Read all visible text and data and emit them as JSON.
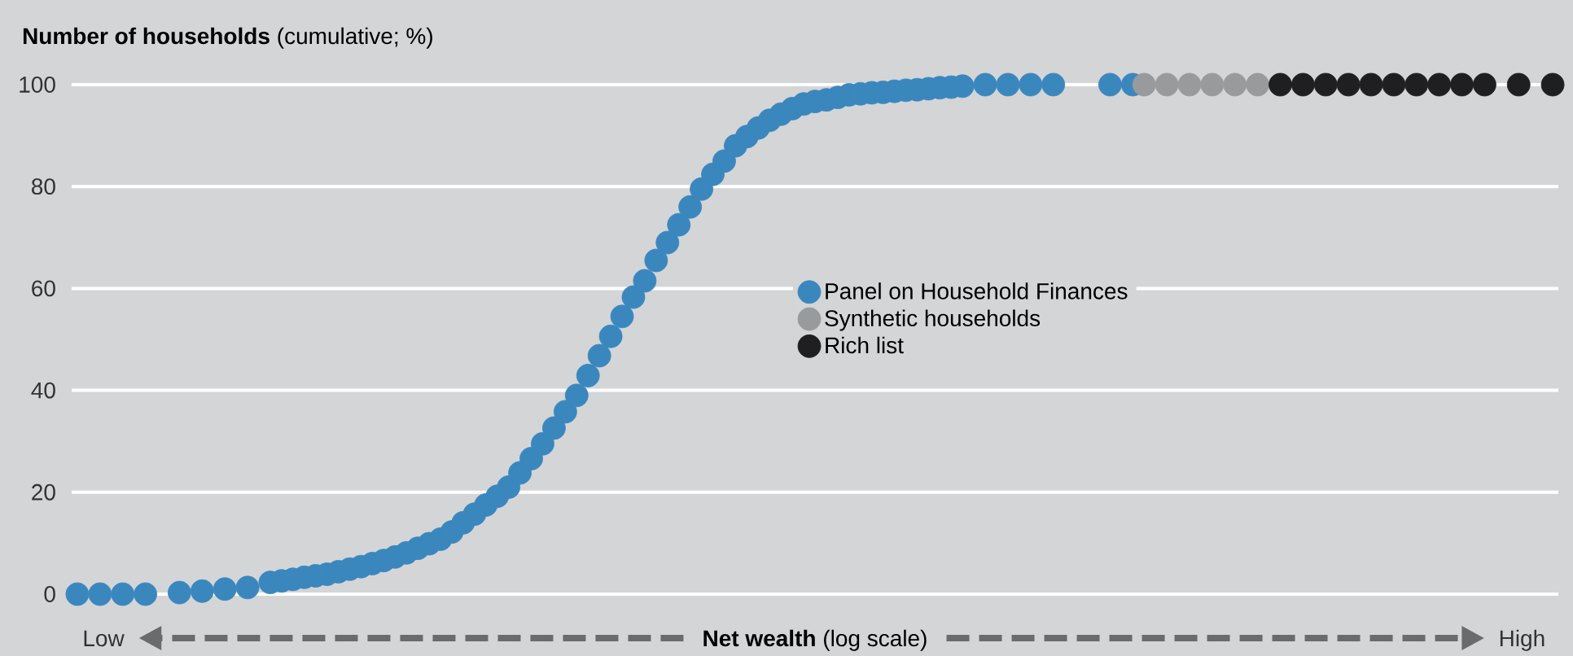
{
  "chart_data": {
    "type": "scatter",
    "xlabel": "**Net wealth** (log scale)",
    "ylabel": "**Number of households** (cumulative; %)",
    "annotations": [
      "Low",
      "High"
    ],
    "categories": [
      null,
      null,
      null,
      null,
      null,
      null,
      null,
      null,
      null,
      null,
      null,
      null,
      null,
      null,
      null,
      null,
      null,
      null,
      null,
      null,
      null,
      null,
      null,
      null,
      null,
      null,
      null,
      null,
      null,
      null,
      null,
      null,
      null,
      null,
      null,
      null,
      null,
      null,
      null,
      null,
      null,
      null,
      null,
      null,
      null,
      null,
      null,
      null,
      null,
      null,
      null,
      null,
      null,
      null,
      null,
      null,
      null,
      null,
      null,
      null,
      null,
      null,
      null,
      null,
      null,
      null,
      null,
      null,
      null,
      null,
      null,
      null,
      null,
      null,
      null,
      null,
      null,
      null,
      null,
      null,
      null,
      null,
      null,
      null,
      null,
      null,
      null,
      null,
      null,
      null,
      null,
      null,
      null,
      null,
      null,
      null,
      null,
      null,
      null,
      null,
      null,
      null,
      null,
      null,
      null,
      null,
      null,
      null,
      null,
      null,
      null,
      null,
      null,
      null,
      null,
      null,
      null,
      null,
      null,
      null,
      null,
      null,
      null,
      null,
      null,
      null,
      null,
      null,
      null,
      null,
      null
    ],
    "ylim": [
      0,
      100
    ],
    "yticks": [
      0,
      20,
      40,
      60,
      80,
      100
    ],
    "grid": "y",
    "legend": "center",
    "marker": "circle",
    "series": [
      {
        "name": "Panel on Household Finances",
        "color": "#3a87be",
        "values": [
          0,
          null,
          0,
          null,
          0,
          null,
          0,
          null,
          null,
          0.3,
          null,
          0.6,
          null,
          1,
          null,
          1.3,
          null,
          2.3,
          2.6,
          2.9,
          3.3,
          3.6,
          3.9,
          4.4,
          4.9,
          5.4,
          6.0,
          6.6,
          7.3,
          8.1,
          9.0,
          9.9,
          10.8,
          12.2,
          14,
          15.7,
          17.5,
          19.2,
          21,
          23.8,
          26.6,
          29.5,
          32.6,
          35.8,
          39,
          42.9,
          46.8,
          50.6,
          54.5,
          58.3,
          61.5,
          65.5,
          69,
          72.5,
          76,
          79.5,
          82.4,
          85,
          88,
          89.8,
          91.5,
          93,
          94.2,
          95.3,
          96.2,
          96.7,
          97,
          97.5,
          98,
          98.2,
          98.4,
          98.5,
          98.7,
          98.9,
          99,
          99.2,
          99.4,
          99.5,
          99.7,
          null,
          100,
          null,
          100,
          null,
          100,
          null,
          100,
          null,
          null,
          null,
          null,
          100,
          null,
          100,
          null,
          null,
          null,
          null,
          null,
          null,
          null,
          null,
          null,
          null,
          null,
          null,
          null,
          null,
          null,
          null,
          null,
          null,
          null,
          null,
          null,
          null,
          null,
          null,
          null,
          null,
          null,
          null,
          null,
          null,
          null,
          null,
          null,
          null,
          null,
          null,
          null
        ]
      },
      {
        "name": "Synthetic households",
        "color": "#999a9c",
        "values": [
          null,
          null,
          null,
          null,
          null,
          null,
          null,
          null,
          null,
          null,
          null,
          null,
          null,
          null,
          null,
          null,
          null,
          null,
          null,
          null,
          null,
          null,
          null,
          null,
          null,
          null,
          null,
          null,
          null,
          null,
          null,
          null,
          null,
          null,
          null,
          null,
          null,
          null,
          null,
          null,
          null,
          null,
          null,
          null,
          null,
          null,
          null,
          null,
          null,
          null,
          null,
          null,
          null,
          null,
          null,
          null,
          null,
          null,
          null,
          null,
          null,
          null,
          null,
          null,
          null,
          null,
          null,
          null,
          null,
          null,
          null,
          null,
          null,
          null,
          null,
          null,
          null,
          null,
          null,
          null,
          null,
          null,
          null,
          null,
          null,
          null,
          null,
          null,
          null,
          null,
          null,
          null,
          null,
          null,
          100,
          null,
          100,
          null,
          100,
          null,
          100,
          null,
          100,
          null,
          100,
          null,
          null,
          null,
          null,
          null,
          null,
          null,
          null,
          null,
          null,
          null,
          null,
          null,
          null,
          null,
          null,
          null,
          null,
          null,
          null,
          null,
          null,
          null,
          null,
          null,
          null
        ]
      },
      {
        "name": "Rich list",
        "color": "#1f1e20",
        "values": [
          null,
          null,
          null,
          null,
          null,
          null,
          null,
          null,
          null,
          null,
          null,
          null,
          null,
          null,
          null,
          null,
          null,
          null,
          null,
          null,
          null,
          null,
          null,
          null,
          null,
          null,
          null,
          null,
          null,
          null,
          null,
          null,
          null,
          null,
          null,
          null,
          null,
          null,
          null,
          null,
          null,
          null,
          null,
          null,
          null,
          null,
          null,
          null,
          null,
          null,
          null,
          null,
          null,
          null,
          null,
          null,
          null,
          null,
          null,
          null,
          null,
          null,
          null,
          null,
          null,
          null,
          null,
          null,
          null,
          null,
          null,
          null,
          null,
          null,
          null,
          null,
          null,
          null,
          null,
          null,
          null,
          null,
          null,
          null,
          null,
          null,
          null,
          null,
          null,
          null,
          null,
          null,
          null,
          null,
          null,
          null,
          null,
          null,
          null,
          null,
          null,
          null,
          null,
          null,
          null,
          null,
          100,
          null,
          100,
          null,
          100,
          null,
          100,
          null,
          100,
          null,
          100,
          null,
          100,
          null,
          100,
          null,
          100,
          null,
          100,
          null,
          null,
          100,
          null,
          null,
          100
        ]
      }
    ]
  }
}
